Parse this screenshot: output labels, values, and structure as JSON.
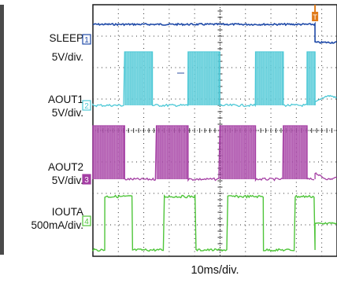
{
  "chart_data": {
    "type": "line",
    "xlabel": "10ms/div.",
    "x_divisions": 10,
    "time_per_div_ms": 10,
    "trigger_marker": "T",
    "sleep_transition_ms": 28,
    "channels": [
      {
        "id": "1",
        "name": "SLEEP",
        "scale": "5V/div.",
        "color": "#1f4aa8",
        "description_values": {
          "high_before_ms": 28,
          "low_after_ms": 28
        }
      },
      {
        "id": "2",
        "name": "AOUT1",
        "scale": "5V/div.",
        "color": "#4cc8d6",
        "pulses_ms": [
          [
            4,
            7.5
          ],
          [
            12,
            16
          ],
          [
            20.5,
            24
          ],
          [
            27,
            28
          ]
        ]
      },
      {
        "id": "3",
        "name": "AOUT2",
        "scale": "5V/div.",
        "color": "#a43ea3",
        "pulses_ms": [
          [
            0,
            4
          ],
          [
            8,
            12
          ],
          [
            16,
            20.5
          ],
          [
            24,
            27
          ]
        ]
      },
      {
        "id": "4",
        "name": "IOUTA",
        "scale": "500mA/div.",
        "color": "#4fc53a",
        "pulses_ms": [
          [
            1.5,
            5
          ],
          [
            9,
            13
          ],
          [
            17,
            21.5
          ],
          [
            25.5,
            28
          ]
        ]
      }
    ]
  },
  "colors": {
    "background": "#ffffff",
    "grid": "#333333",
    "frame": "#1a1a1a",
    "trigger": "#e07b1a"
  }
}
